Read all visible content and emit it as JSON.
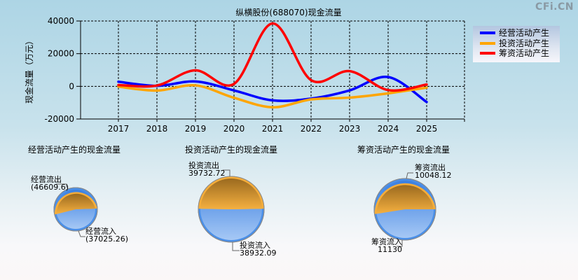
{
  "watermark": "CFi.CN",
  "chart_data": [
    {
      "type": "line",
      "title": "纵横股份(688070)现金流量",
      "xlabel": "",
      "ylabel": "现金流量（万元）",
      "x": [
        "2017",
        "2018",
        "2019",
        "2020",
        "2021",
        "2022",
        "2023",
        "2024",
        "2025"
      ],
      "ylim": [
        -20000,
        40000
      ],
      "yticks": [
        "40000",
        "20000",
        "0",
        "-20000"
      ],
      "grid": true,
      "legend_position": "right-top",
      "series": [
        {
          "name": "经营活动产生",
          "color": "#0000ff",
          "values": [
            2800,
            300,
            3000,
            -2500,
            -8600,
            -7500,
            -2500,
            5700,
            -9600
          ]
        },
        {
          "name": "投资活动产生",
          "color": "#ffa500",
          "values": [
            -200,
            -2600,
            600,
            -7000,
            -12800,
            -8000,
            -6900,
            -4300,
            -800
          ]
        },
        {
          "name": "筹资活动产生",
          "color": "#ff0000",
          "values": [
            800,
            500,
            9800,
            1500,
            38500,
            3800,
            9300,
            -2300,
            1100
          ]
        }
      ]
    },
    {
      "type": "pie",
      "title": "经营活动产生的现金流量",
      "slices": [
        {
          "label": "经营流出",
          "value": 46609.6,
          "display": "(46609.6)",
          "color": "#f5a623"
        },
        {
          "label": "经营流入",
          "value": 37025.26,
          "display": "(37025.26)",
          "color": "#4a90e8"
        }
      ]
    },
    {
      "type": "pie",
      "title": "投资活动产生的现金流量",
      "slices": [
        {
          "label": "投资流出",
          "value": 39732.72,
          "display": "39732.72",
          "color": "#f5a623"
        },
        {
          "label": "投资流入",
          "value": 38932.09,
          "display": "38932.09",
          "color": "#4a90e8"
        }
      ]
    },
    {
      "type": "pie",
      "title": "筹资活动产生的现金流量",
      "slices": [
        {
          "label": "筹资流出",
          "value": 10048.12,
          "display": "10048.12",
          "color": "#f5a623"
        },
        {
          "label": "筹资流入",
          "value": 11130,
          "display": "11130",
          "color": "#4a90e8"
        }
      ]
    }
  ]
}
